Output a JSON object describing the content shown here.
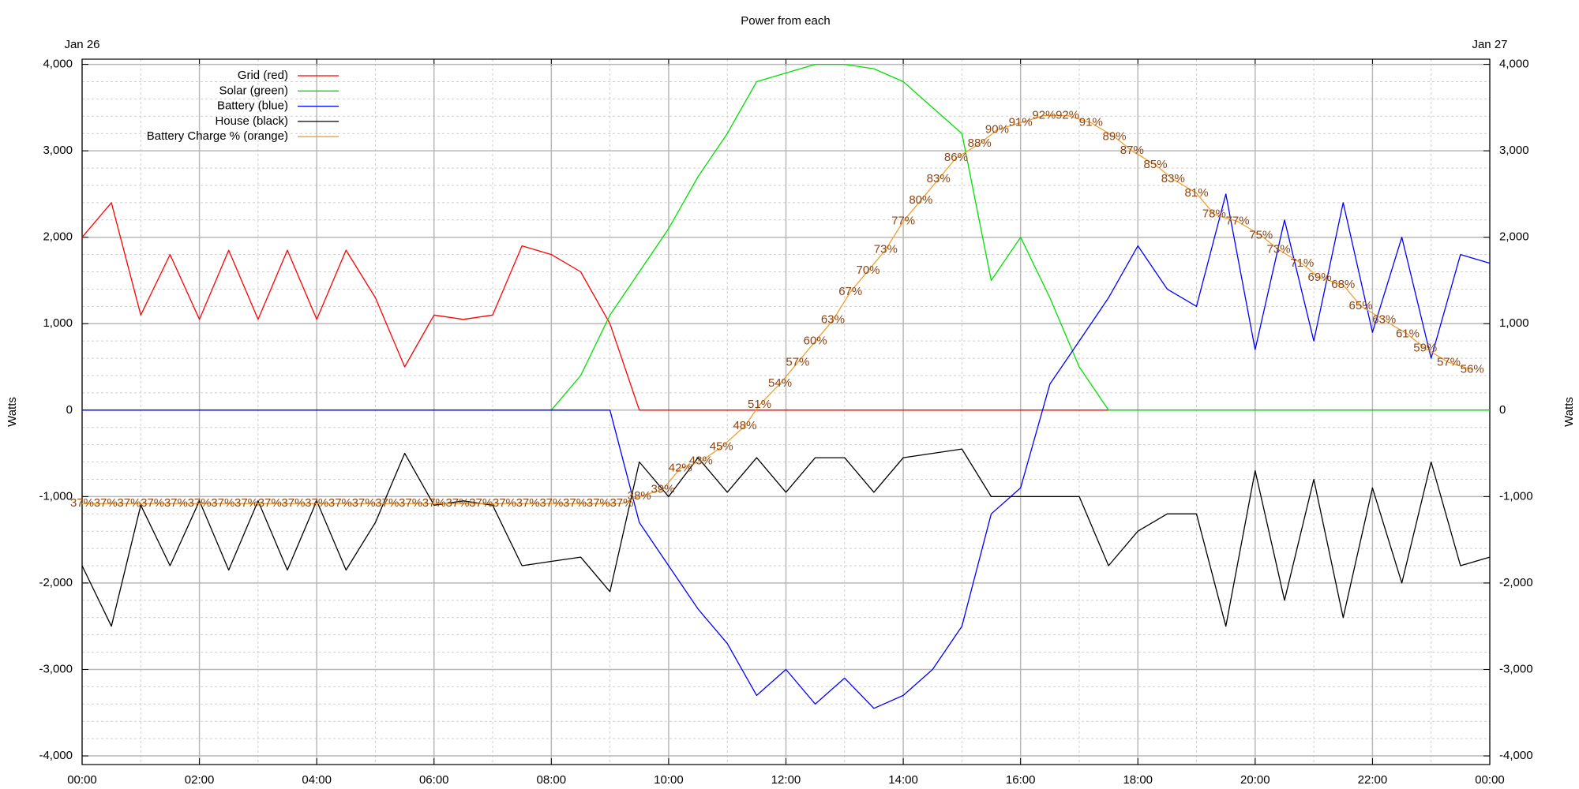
{
  "chart_data": {
    "type": "line",
    "title": "Power from each",
    "ylabel": "Watts",
    "y2label": "Watts",
    "annotations": [
      {
        "text": "Jan 26",
        "at": "top-left"
      },
      {
        "text": "Jan 27",
        "at": "top-right"
      }
    ],
    "x": [
      0,
      0.5,
      1,
      1.5,
      2,
      2.5,
      3,
      3.5,
      4,
      4.5,
      5,
      5.5,
      6,
      6.5,
      7,
      7.5,
      8,
      8.5,
      9,
      9.5,
      10,
      10.5,
      11,
      11.5,
      12,
      12.5,
      13,
      13.5,
      14,
      14.5,
      15,
      15.5,
      16,
      16.5,
      17,
      17.5,
      18,
      18.5,
      19,
      19.5,
      20,
      20.5,
      21,
      21.5,
      22,
      22.5,
      23,
      23.5,
      24
    ],
    "xlim": [
      0,
      24
    ],
    "xticks": [
      {
        "value": 0,
        "label": "00:00"
      },
      {
        "value": 2,
        "label": "02:00"
      },
      {
        "value": 4,
        "label": "04:00"
      },
      {
        "value": 6,
        "label": "06:00"
      },
      {
        "value": 8,
        "label": "08:00"
      },
      {
        "value": 10,
        "label": "10:00"
      },
      {
        "value": 12,
        "label": "12:00"
      },
      {
        "value": 14,
        "label": "14:00"
      },
      {
        "value": 16,
        "label": "16:00"
      },
      {
        "value": 18,
        "label": "18:00"
      },
      {
        "value": 20,
        "label": "20:00"
      },
      {
        "value": 22,
        "label": "22:00"
      },
      {
        "value": 24,
        "label": "00:00"
      }
    ],
    "ylim": [
      -4100,
      4060
    ],
    "yticks": [
      {
        "value": -4000,
        "label": "-4,000"
      },
      {
        "value": -3000,
        "label": "-3,000"
      },
      {
        "value": -2000,
        "label": "-2,000"
      },
      {
        "value": -1000,
        "label": "-1,000"
      },
      0,
      {
        "value": 1000,
        "label": "1,000"
      },
      {
        "value": 2000,
        "label": "2,000"
      },
      {
        "value": 3000,
        "label": "3,000"
      },
      {
        "value": 4000,
        "label": "4,000"
      }
    ],
    "y2lim": [
      -4100,
      4060
    ],
    "y2ticks": [
      {
        "value": -4000,
        "label": "-4,000"
      },
      {
        "value": -3000,
        "label": "-3,000"
      },
      {
        "value": -2000,
        "label": "-2,000"
      },
      {
        "value": -1000,
        "label": "-1,000"
      },
      0,
      {
        "value": 1000,
        "label": "1,000"
      },
      {
        "value": 2000,
        "label": "2,000"
      },
      {
        "value": 3000,
        "label": "3,000"
      },
      {
        "value": 4000,
        "label": "4,000"
      }
    ],
    "y3lim": [
      0,
      100
    ],
    "grid": true,
    "minor_grid": {
      "x": 2,
      "y": 5
    },
    "legend": "top-left",
    "series": [
      {
        "name": "Grid (red)",
        "color": "#ff0000",
        "values": [
          2000,
          2400,
          1100,
          1800,
          1050,
          1850,
          1050,
          1850,
          1050,
          1850,
          1300,
          500,
          1100,
          1050,
          1100,
          1900,
          1800,
          1600,
          1000,
          0,
          0,
          0,
          0,
          0,
          0,
          0,
          0,
          0,
          0,
          0,
          0,
          0,
          0,
          0,
          0,
          0,
          0,
          0,
          0,
          0,
          0,
          0,
          0,
          0,
          0,
          0,
          0,
          0,
          0
        ]
      },
      {
        "name": "Solar (green)",
        "color": "#00e000",
        "values": [
          0,
          0,
          0,
          0,
          0,
          0,
          0,
          0,
          0,
          0,
          0,
          0,
          0,
          0,
          0,
          0,
          0,
          400,
          1100,
          1600,
          2100,
          2700,
          3200,
          3800,
          3900,
          4000,
          4000,
          3950,
          3800,
          3500,
          3200,
          1500,
          2000,
          1300,
          500,
          0,
          0,
          0,
          0,
          0,
          0,
          0,
          0,
          0,
          0,
          0,
          0,
          0,
          0
        ]
      },
      {
        "name": "Battery (blue)",
        "color": "#0000ff",
        "values": [
          0,
          0,
          0,
          0,
          0,
          0,
          0,
          0,
          0,
          0,
          0,
          0,
          0,
          0,
          0,
          0,
          0,
          0,
          0,
          -1300,
          -1800,
          -2300,
          -2700,
          -3300,
          -3000,
          -3400,
          -3100,
          -3450,
          -3300,
          -3000,
          -2500,
          -1200,
          -900,
          300,
          800,
          1300,
          1900,
          1400,
          1200,
          2500,
          700,
          2200,
          800,
          2400,
          900,
          2000,
          600,
          1800,
          1700
        ]
      },
      {
        "name": "House (black)",
        "color": "#000000",
        "values": [
          -1800,
          -2500,
          -1100,
          -1800,
          -1050,
          -1850,
          -1050,
          -1850,
          -1050,
          -1850,
          -1300,
          -500,
          -1100,
          -1050,
          -1100,
          -1800,
          -1750,
          -1700,
          -2100,
          -600,
          -1000,
          -550,
          -950,
          -550,
          -950,
          -550,
          -550,
          -950,
          -550,
          -500,
          -450,
          -1000,
          -1000,
          -1000,
          -1000,
          -1800,
          -1400,
          -1200,
          -1200,
          -2500,
          -700,
          -2200,
          -800,
          -2400,
          -900,
          -2000,
          -600,
          -1800,
          -1700
        ]
      },
      {
        "name": "Battery Charge % (orange)",
        "color": "#f0a030",
        "label_color": "#8b4513",
        "axis": "y3",
        "x": [
          0,
          0.4,
          0.8,
          1.2,
          1.6,
          2,
          2.4,
          2.8,
          3.2,
          3.6,
          4,
          4.4,
          4.8,
          5.2,
          5.6,
          6,
          6.4,
          6.8,
          7.2,
          7.6,
          8,
          8.4,
          8.8,
          9.2,
          9.5,
          9.9,
          10.2,
          10.55,
          10.9,
          11.3,
          11.55,
          11.9,
          12.2,
          12.5,
          12.8,
          13.1,
          13.4,
          13.7,
          14,
          14.3,
          14.6,
          14.9,
          15.3,
          15.6,
          16,
          16.4,
          16.8,
          17.2,
          17.6,
          17.9,
          18.3,
          18.6,
          19,
          19.3,
          19.7,
          20.1,
          20.4,
          20.8,
          21.1,
          21.5,
          21.8,
          22.2,
          22.6,
          22.9,
          23.3,
          23.7
        ],
        "values": [
          37,
          37,
          37,
          37,
          37,
          37,
          37,
          37,
          37,
          37,
          37,
          37,
          37,
          37,
          37,
          37,
          37,
          37,
          37,
          37,
          37,
          37,
          37,
          37,
          38,
          39,
          42,
          43,
          45,
          48,
          51,
          54,
          57,
          60,
          63,
          67,
          70,
          73,
          77,
          80,
          83,
          86,
          88,
          90,
          91,
          92,
          92,
          91,
          89,
          87,
          85,
          83,
          81,
          78,
          77,
          75,
          73,
          71,
          69,
          68,
          65,
          63,
          61,
          59,
          57,
          56
        ],
        "value_labels": [
          "37%",
          "37%",
          "37%",
          "37%",
          "37%",
          "37%",
          "37%",
          "37%",
          "37%",
          "37%",
          "37%",
          "37%",
          "37%",
          "37%",
          "37%",
          "37%",
          "37%",
          "37%",
          "37%",
          "37%",
          "37%",
          "37%",
          "37%",
          "37%",
          "38%",
          "39%",
          "42%",
          "43%",
          "45%",
          "48%",
          "51%",
          "54%",
          "57%",
          "60%",
          "63%",
          "67%",
          "70%",
          "73%",
          "77%",
          "80%",
          "83%",
          "86%",
          "88%",
          "90%",
          "91%",
          "92%",
          "92%",
          "91%",
          "89%",
          "87%",
          "85%",
          "83%",
          "81%",
          "78%",
          "77%",
          "75%",
          "73%",
          "71%",
          "69%",
          "68%",
          "65%",
          "63%",
          "61%",
          "59%",
          "57%",
          "56%"
        ]
      }
    ]
  }
}
